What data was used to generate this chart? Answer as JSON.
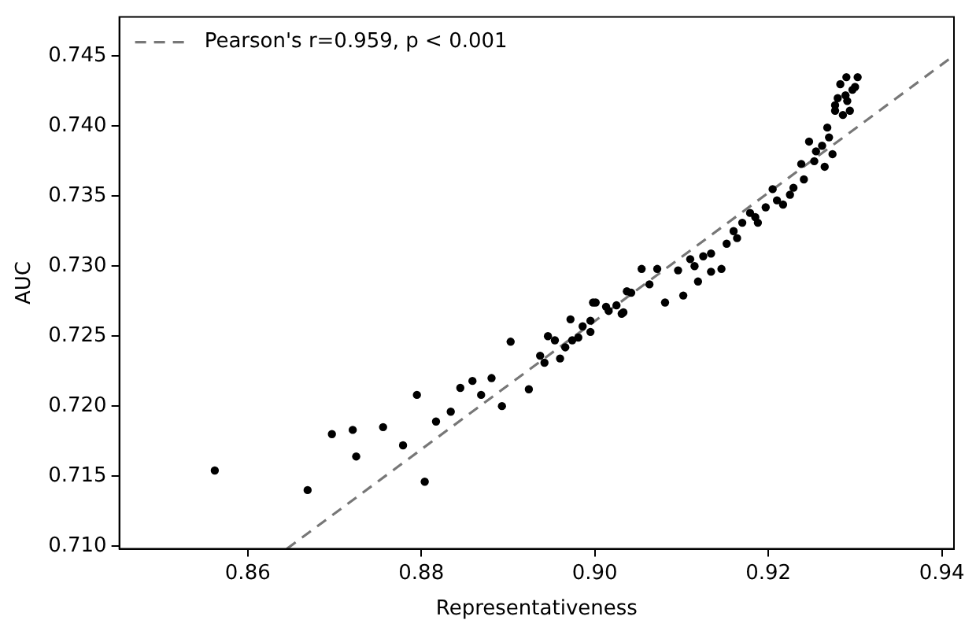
{
  "chart_data": {
    "type": "scatter",
    "xlabel": "Representativeness",
    "ylabel": "AUC",
    "xlim": [
      0.8452,
      0.9414
    ],
    "ylim": [
      0.7098,
      0.7478
    ],
    "xticks": [
      {
        "value": 0.86,
        "label": "0.86"
      },
      {
        "value": 0.88,
        "label": "0.88"
      },
      {
        "value": 0.9,
        "label": "0.90"
      },
      {
        "value": 0.92,
        "label": "0.92"
      },
      {
        "value": 0.94,
        "label": "0.94"
      }
    ],
    "yticks": [
      {
        "value": 0.71,
        "label": "0.710"
      },
      {
        "value": 0.715,
        "label": "0.715"
      },
      {
        "value": 0.72,
        "label": "0.720"
      },
      {
        "value": 0.725,
        "label": "0.725"
      },
      {
        "value": 0.73,
        "label": "0.730"
      },
      {
        "value": 0.735,
        "label": "0.735"
      },
      {
        "value": 0.74,
        "label": "0.740"
      },
      {
        "value": 0.745,
        "label": "0.745"
      }
    ],
    "grid": false,
    "legend": "top left",
    "series": [
      {
        "color": "#000000",
        "marker": "circle",
        "x": [
          0.8562,
          0.8669,
          0.8697,
          0.8721,
          0.8725,
          0.8756,
          0.8779,
          0.8795,
          0.8804,
          0.8817,
          0.8834,
          0.8845,
          0.8859,
          0.8869,
          0.8881,
          0.8893,
          0.8903,
          0.8924,
          0.8937,
          0.8942,
          0.8946,
          0.8954,
          0.896,
          0.8966,
          0.8972,
          0.8974,
          0.8981,
          0.8986,
          0.8995,
          0.8995,
          0.8998,
          0.9001,
          0.9013,
          0.9016,
          0.9025,
          0.9031,
          0.9033,
          0.9037,
          0.9042,
          0.9054,
          0.9063,
          0.9072,
          0.9081,
          0.9096,
          0.9102,
          0.911,
          0.9115,
          0.9119,
          0.9125,
          0.9134,
          0.9134,
          0.9146,
          0.9152,
          0.916,
          0.9164,
          0.917,
          0.9179,
          0.9185,
          0.9188,
          0.9197,
          0.9205,
          0.921,
          0.9217,
          0.9225,
          0.9229,
          0.9238,
          0.9241,
          0.9247,
          0.9253,
          0.9255,
          0.9262,
          0.9265,
          0.9268,
          0.927,
          0.9274,
          0.9277,
          0.9277,
          0.928,
          0.9283,
          0.9286,
          0.9289,
          0.929,
          0.9291,
          0.9294,
          0.9297,
          0.93,
          0.9303
        ],
        "values": [
          0.7154,
          0.714,
          0.718,
          0.7183,
          0.7164,
          0.7185,
          0.7172,
          0.7208,
          0.7146,
          0.7189,
          0.7196,
          0.7213,
          0.7218,
          0.7208,
          0.722,
          0.72,
          0.7246,
          0.7212,
          0.7236,
          0.7231,
          0.725,
          0.7247,
          0.7234,
          0.7242,
          0.7262,
          0.7247,
          0.7249,
          0.7257,
          0.7261,
          0.7253,
          0.7274,
          0.7274,
          0.7271,
          0.7268,
          0.7272,
          0.7266,
          0.7267,
          0.7282,
          0.7281,
          0.7298,
          0.7287,
          0.7298,
          0.7274,
          0.7297,
          0.7279,
          0.7305,
          0.73,
          0.7289,
          0.7307,
          0.7296,
          0.7309,
          0.7298,
          0.7316,
          0.7325,
          0.732,
          0.7331,
          0.7338,
          0.7335,
          0.7331,
          0.7342,
          0.7355,
          0.7347,
          0.7344,
          0.7351,
          0.7356,
          0.7373,
          0.7362,
          0.7389,
          0.7375,
          0.7382,
          0.7386,
          0.7371,
          0.7399,
          0.7392,
          0.738,
          0.7411,
          0.7415,
          0.742,
          0.743,
          0.7408,
          0.7422,
          0.7435,
          0.7418,
          0.7411,
          0.7426,
          0.7428,
          0.7435
        ]
      },
      {
        "type": "line",
        "name": "Pearson's r=0.959, p < 0.001",
        "color": "#777777",
        "line_style": "dashed",
        "marker": "none",
        "x": [
          0.8645,
          0.9413
        ],
        "values": [
          0.7098,
          0.745
        ]
      }
    ]
  }
}
